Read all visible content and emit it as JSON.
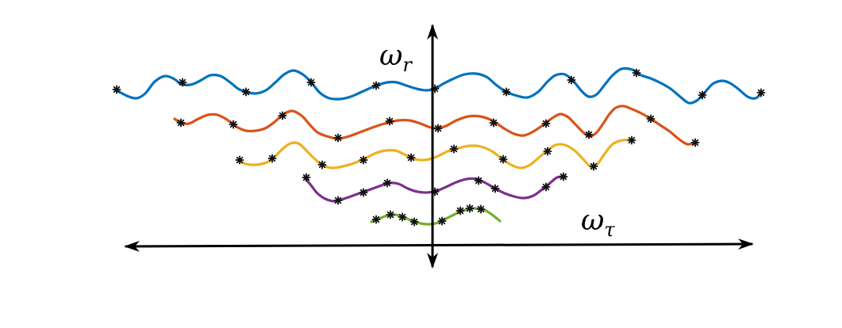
{
  "axes": {
    "vertical_label": "ω",
    "vertical_sub": "r",
    "horizontal_label": "ω",
    "horizontal_sub": "τ"
  },
  "colors": {
    "axis": "#000000",
    "marker": "#111111",
    "curve_1": "#0072BD",
    "curve_2": "#D95319",
    "curve_3": "#EDB120",
    "curve_4": "#7E2F8E",
    "curve_5": "#77AC30"
  },
  "curve_count": 5,
  "marker_symbol": "asterisk"
}
